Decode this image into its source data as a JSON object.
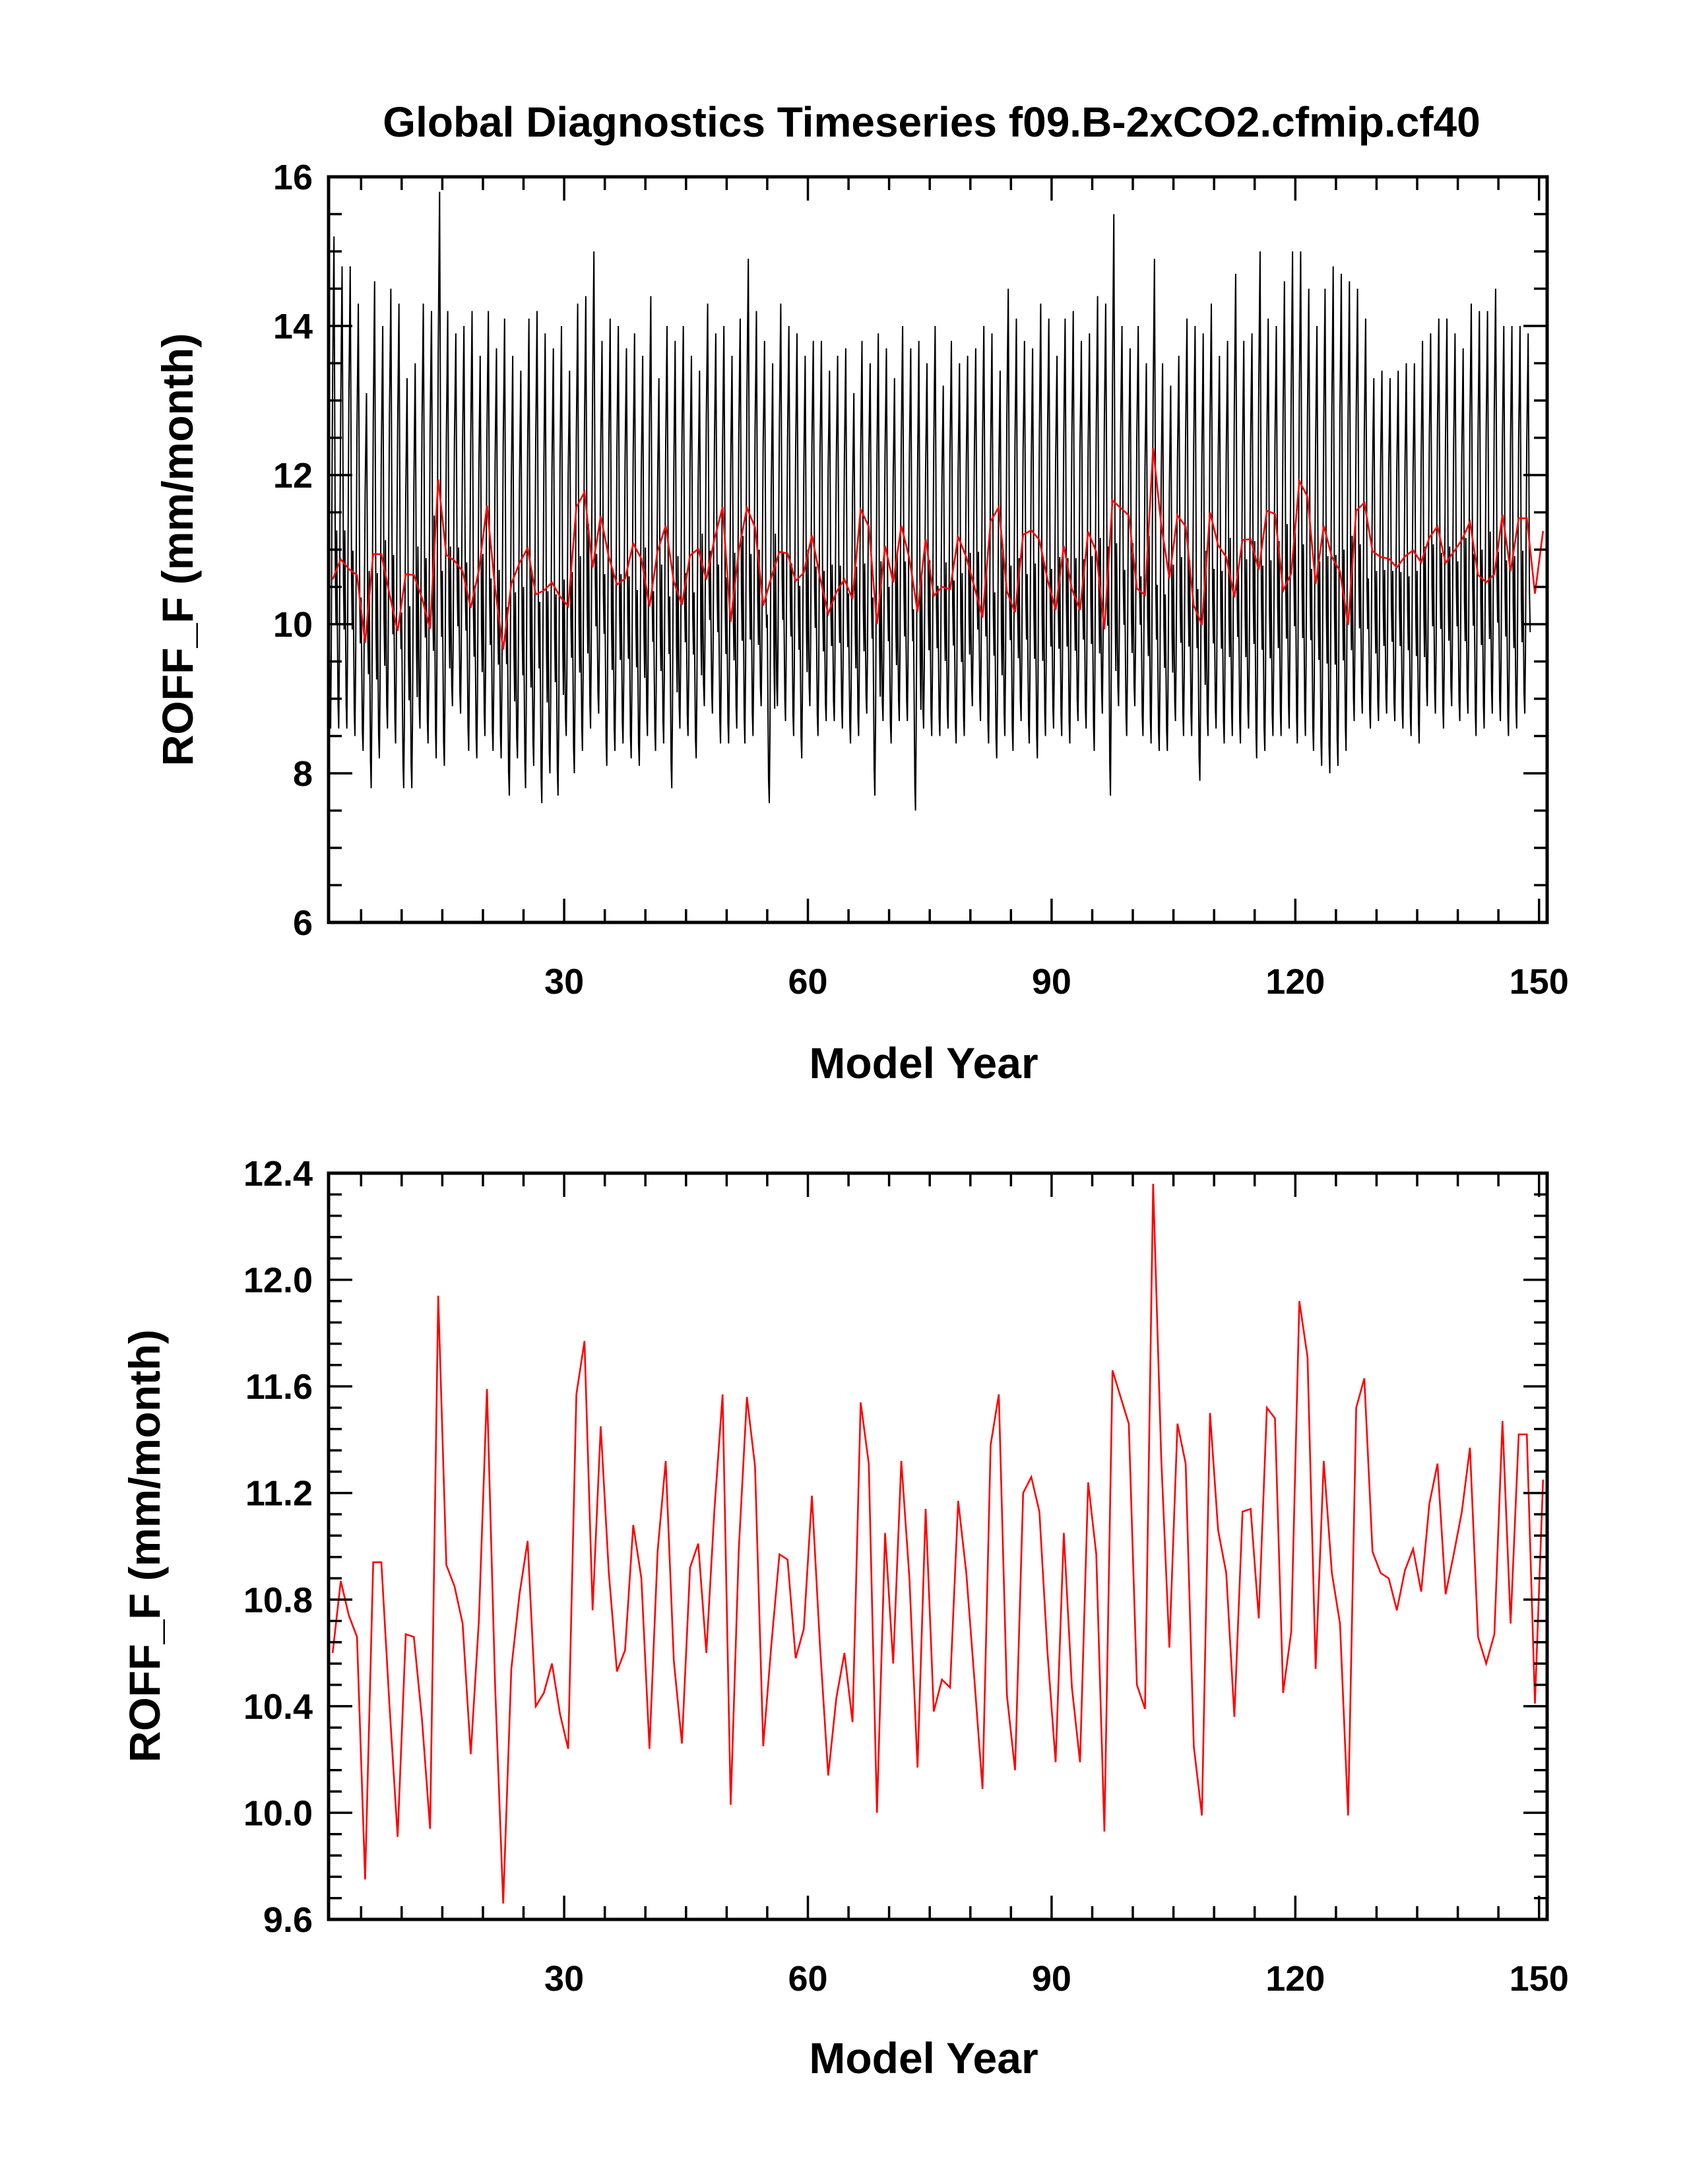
{
  "title": "Global Diagnostics Timeseries f09.B-2xCO2.cfmip.cf40",
  "colors": {
    "monthly": "#000000",
    "annual": "#ff0000",
    "axis": "#000000"
  },
  "chart_data": [
    {
      "type": "line",
      "xlabel": "Model Year",
      "ylabel": "ROFF_F (mm/month)",
      "xlim": [
        1,
        151
      ],
      "ylim": [
        6,
        16
      ],
      "xticks": [
        "30",
        "60",
        "90",
        "120",
        "150"
      ],
      "yticks": [
        "6",
        "8",
        "10",
        "12",
        "14",
        "16"
      ],
      "series": [
        {
          "role": "monthly",
          "x_start": 1,
          "x_step": 0.08333,
          "monthly_pattern": [
            11.0,
            9.9,
            8.9,
            8.6,
            9.5,
            11.2,
            12.6,
            13.4,
            14.2,
            12.4,
            10.4,
            9.8
          ],
          "annual_peak": [
            15.2,
            14.8,
            14.8,
            14.3,
            13.1,
            14.6,
            14.0,
            14.5,
            14.3,
            13.3,
            13.5,
            14.3,
            14.2,
            15.8,
            14.2,
            13.9,
            14.0,
            14.2,
            13.6,
            14.2,
            13.7,
            14.1,
            13.6,
            13.4,
            14.1,
            14.2,
            13.9,
            13.7,
            14.0,
            13.4,
            14.3,
            14.4,
            15.0,
            13.8,
            14.1,
            14.0,
            13.7,
            13.9,
            13.6,
            14.4,
            13.3,
            14.0,
            13.8,
            14.0,
            13.6,
            13.4,
            14.3,
            13.9,
            14.0,
            13.6,
            14.1,
            14.9,
            14.2,
            13.8,
            13.5,
            14.3,
            14.0,
            13.9,
            13.6,
            13.8,
            13.8,
            13.4,
            13.6,
            13.7,
            13.1,
            13.8,
            13.5,
            13.9,
            13.7,
            13.3,
            14.0,
            13.7,
            13.8,
            13.5,
            14.0,
            13.2,
            13.8,
            13.5,
            13.6,
            13.7,
            14.0,
            13.9,
            13.4,
            14.5,
            14.1,
            13.8,
            13.7,
            14.3,
            14.1,
            13.6,
            14.1,
            14.2,
            13.8,
            13.9,
            14.4,
            14.3,
            15.5,
            14.0,
            13.7,
            14.0,
            13.5,
            14.9,
            13.5,
            13.2,
            13.6,
            14.1,
            14.0,
            13.9,
            14.3,
            13.6,
            13.8,
            14.7,
            13.8,
            13.9,
            15.0,
            14.1,
            14.0,
            14.6,
            15.0,
            15.0,
            14.5,
            14.0,
            14.5,
            14.8,
            14.7,
            14.6,
            14.5,
            14.1,
            13.3,
            13.4,
            13.3,
            13.4,
            13.5,
            13.5,
            13.8,
            13.9,
            14.1,
            14.1,
            13.9,
            13.7,
            14.3,
            14.2,
            14.2,
            14.5,
            14.0,
            14.0,
            14.0,
            13.9
          ],
          "annual_trough": [
            8.6,
            8.6,
            8.6,
            8.5,
            8.3,
            7.8,
            8.2,
            8.6,
            8.4,
            7.8,
            7.8,
            8.6,
            8.4,
            8.2,
            8.1,
            8.9,
            8.8,
            8.3,
            8.2,
            8.5,
            8.3,
            8.2,
            7.7,
            8.2,
            7.8,
            8.1,
            7.6,
            8.0,
            7.7,
            8.5,
            8.0,
            8.3,
            8.6,
            8.8,
            8.1,
            8.3,
            8.4,
            8.2,
            8.1,
            8.5,
            8.3,
            8.4,
            7.8,
            8.6,
            8.5,
            8.2,
            8.9,
            8.8,
            8.4,
            8.4,
            8.6,
            8.4,
            8.5,
            8.9,
            7.6,
            8.9,
            8.7,
            8.5,
            8.2,
            8.9,
            8.5,
            8.7,
            8.7,
            8.6,
            8.4,
            8.5,
            8.8,
            7.7,
            8.7,
            8.4,
            8.7,
            8.7,
            7.5,
            8.6,
            8.5,
            8.5,
            8.6,
            8.4,
            8.5,
            8.9,
            8.7,
            8.4,
            8.2,
            8.5,
            8.3,
            8.7,
            8.4,
            8.2,
            8.5,
            8.6,
            8.5,
            8.4,
            8.7,
            8.6,
            8.3,
            8.8,
            7.7,
            8.9,
            8.5,
            8.9,
            8.5,
            8.4,
            8.3,
            8.3,
            8.7,
            8.5,
            8.5,
            7.9,
            8.5,
            8.6,
            8.4,
            8.5,
            8.4,
            8.6,
            8.2,
            8.3,
            8.5,
            8.5,
            8.6,
            8.4,
            8.5,
            8.3,
            8.1,
            8.0,
            8.1,
            8.3,
            8.7,
            8.8,
            8.6,
            8.7,
            8.8,
            8.7,
            8.6,
            8.5,
            8.4,
            8.9,
            8.8,
            8.6,
            8.9,
            8.7,
            8.8,
            8.5,
            8.6,
            8.8,
            8.7,
            8.5,
            8.6,
            8.8,
            8.5,
            8.4,
            8.4
          ]
        },
        {
          "role": "annual",
          "x_start": 1.5,
          "x_step": 1,
          "values": [
            10.6,
            10.87,
            10.74,
            10.66,
            9.75,
            10.94,
            10.94,
            10.4,
            9.91,
            10.67,
            10.66,
            10.35,
            9.94,
            11.94,
            10.93,
            10.85,
            10.71,
            10.22,
            10.72,
            11.59,
            10.48,
            9.66,
            10.54,
            10.82,
            11.02,
            10.4,
            10.45,
            10.56,
            10.37,
            10.24,
            11.57,
            11.77,
            10.76,
            11.45,
            10.9,
            10.53,
            10.61,
            11.08,
            10.88,
            10.24,
            10.98,
            11.32,
            10.57,
            10.26,
            10.92,
            11.01,
            10.6,
            11.14,
            11.57,
            10.03,
            10.99,
            11.56,
            11.3,
            10.25,
            10.63,
            10.97,
            10.95,
            10.58,
            10.69,
            11.19,
            10.62,
            10.14,
            10.43,
            10.6,
            10.34,
            11.54,
            11.31,
            10.0,
            11.05,
            10.56,
            11.32,
            10.88,
            10.17,
            11.14,
            10.38,
            10.5,
            10.47,
            11.17,
            10.9,
            10.5,
            10.09,
            11.38,
            11.57,
            10.44,
            10.16,
            11.2,
            11.26,
            11.13,
            10.6,
            10.19,
            11.05,
            10.47,
            10.19,
            11.24,
            10.97,
            9.93,
            11.66,
            11.56,
            11.46,
            10.48,
            10.39,
            12.36,
            11.33,
            10.62,
            11.46,
            11.31,
            10.25,
            9.99,
            11.5,
            11.06,
            10.9,
            10.36,
            11.13,
            11.14,
            10.73,
            11.52,
            11.48,
            10.45,
            10.68,
            11.92,
            11.71,
            10.54,
            11.32,
            10.9,
            10.71,
            9.99,
            11.52,
            11.63,
            10.98,
            10.9,
            10.88,
            10.76,
            10.91,
            10.99,
            10.83,
            11.16,
            11.31,
            10.82,
            10.97,
            11.13,
            11.37,
            10.66,
            10.56,
            10.67,
            11.47,
            10.71,
            11.42,
            11.42,
            10.41,
            11.25
          ]
        }
      ]
    },
    {
      "type": "line",
      "xlabel": "Model Year",
      "ylabel": "ROFF_F (mm/month)",
      "xlim": [
        1,
        151
      ],
      "ylim": [
        9.6,
        12.4
      ],
      "xticks": [
        "30",
        "60",
        "90",
        "120",
        "150"
      ],
      "yticks": [
        "9.6",
        "10.0",
        "10.4",
        "10.8",
        "11.2",
        "11.6",
        "12.0",
        "12.4"
      ],
      "series": [
        {
          "role": "annual",
          "x_start": 1.5,
          "x_step": 1,
          "values": [
            10.6,
            10.87,
            10.74,
            10.66,
            9.75,
            10.94,
            10.94,
            10.4,
            9.91,
            10.67,
            10.66,
            10.35,
            9.94,
            11.94,
            10.93,
            10.85,
            10.71,
            10.22,
            10.72,
            11.59,
            10.48,
            9.66,
            10.54,
            10.82,
            11.02,
            10.4,
            10.45,
            10.56,
            10.37,
            10.24,
            11.57,
            11.77,
            10.76,
            11.45,
            10.9,
            10.53,
            10.61,
            11.08,
            10.88,
            10.24,
            10.98,
            11.32,
            10.57,
            10.26,
            10.92,
            11.01,
            10.6,
            11.14,
            11.57,
            10.03,
            10.99,
            11.56,
            11.3,
            10.25,
            10.63,
            10.97,
            10.95,
            10.58,
            10.69,
            11.19,
            10.62,
            10.14,
            10.43,
            10.6,
            10.34,
            11.54,
            11.31,
            10.0,
            11.05,
            10.56,
            11.32,
            10.88,
            10.17,
            11.14,
            10.38,
            10.5,
            10.47,
            11.17,
            10.9,
            10.5,
            10.09,
            11.38,
            11.57,
            10.44,
            10.16,
            11.2,
            11.26,
            11.13,
            10.6,
            10.19,
            11.05,
            10.47,
            10.19,
            11.24,
            10.97,
            9.93,
            11.66,
            11.56,
            11.46,
            10.48,
            10.39,
            12.36,
            11.33,
            10.62,
            11.46,
            11.31,
            10.25,
            9.99,
            11.5,
            11.06,
            10.9,
            10.36,
            11.13,
            11.14,
            10.73,
            11.52,
            11.48,
            10.45,
            10.68,
            11.92,
            11.71,
            10.54,
            11.32,
            10.9,
            10.71,
            9.99,
            11.52,
            11.63,
            10.98,
            10.9,
            10.88,
            10.76,
            10.91,
            10.99,
            10.83,
            11.16,
            11.31,
            10.82,
            10.97,
            11.13,
            11.37,
            10.66,
            10.56,
            10.67,
            11.47,
            10.71,
            11.42,
            11.42,
            10.41,
            11.25
          ]
        }
      ]
    }
  ]
}
